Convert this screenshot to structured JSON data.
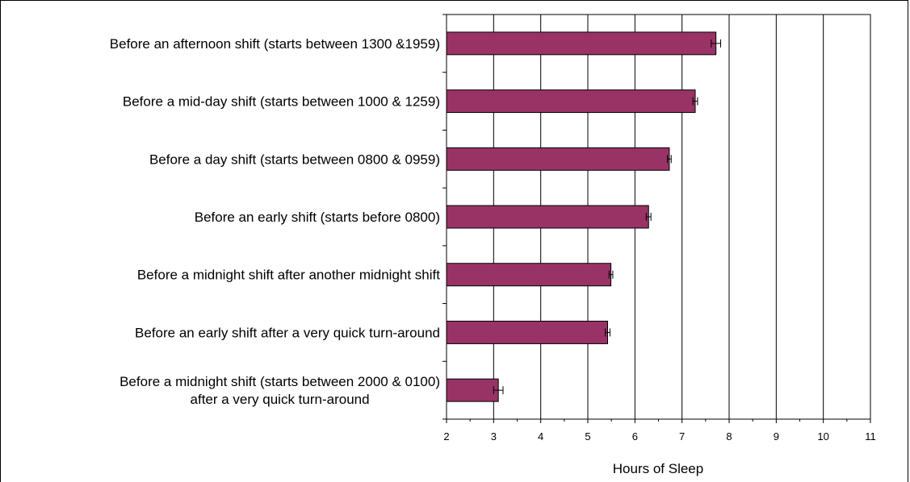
{
  "chart_data": {
    "type": "bar",
    "orientation": "horizontal",
    "title": "",
    "xlabel": "Hours of Sleep",
    "ylabel": "",
    "xlim": [
      2,
      11
    ],
    "xticks": [
      "2",
      "3",
      "4",
      "5",
      "6",
      "7",
      "8",
      "9",
      "10",
      "11"
    ],
    "grid": true,
    "legend": "none",
    "bar_color": "#993366",
    "categories": [
      [
        "Before an afternoon shift (starts between 1300 &1959)"
      ],
      [
        "Before a mid-day shift (starts between 1000 & 1259)"
      ],
      [
        "Before a day shift (starts between 0800 & 0959)"
      ],
      [
        "Before an early shift (starts before 0800)"
      ],
      [
        "Before a midnight shift after another midnight shift"
      ],
      [
        "Before an early shift after a very quick turn-around"
      ],
      [
        "Before a midnight shift (starts between 2000 & 0100)",
        "after a very quick turn-around"
      ]
    ],
    "values": [
      7.72,
      7.28,
      6.73,
      6.29,
      5.49,
      5.42,
      3.1
    ],
    "errors": [
      0.1,
      0.05,
      0.04,
      0.05,
      0.04,
      0.05,
      0.1
    ]
  }
}
